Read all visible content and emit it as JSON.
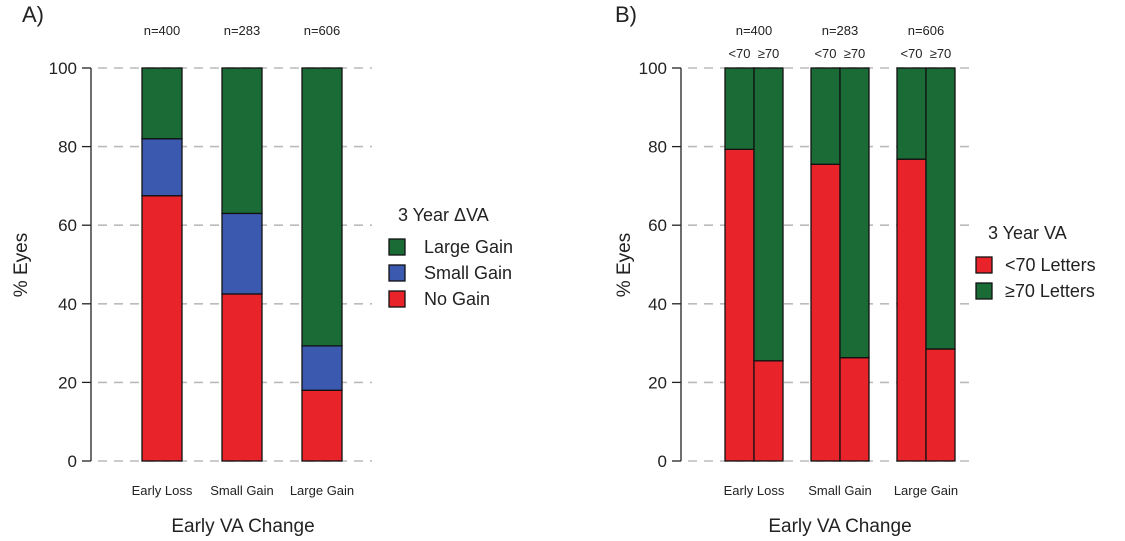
{
  "chart_data": [
    {
      "type": "bar",
      "panel_label": "A)",
      "stacked": true,
      "categories": [
        "Early Loss",
        "Small Gain",
        "Large Gain"
      ],
      "n_labels": [
        "n=400",
        "n=283",
        "n=606"
      ],
      "series": [
        {
          "name": "No Gain",
          "color": "#e8232a",
          "values": [
            67.5,
            42.5,
            18
          ]
        },
        {
          "name": "Small Gain",
          "color": "#3b59ae",
          "values": [
            14.5,
            20.5,
            11.3
          ]
        },
        {
          "name": "Large Gain",
          "color": "#1a6b35",
          "values": [
            18,
            37,
            70.7
          ]
        }
      ],
      "legend_title": "3 Year ΔVA",
      "legend_order": [
        "Large Gain",
        "Small Gain",
        "No Gain"
      ],
      "xlabel": "Early VA Change",
      "ylabel": "% Eyes",
      "ylim": [
        0,
        100
      ],
      "yticks": [
        "0",
        "20",
        "40",
        "60",
        "80",
        "100"
      ],
      "grid": true,
      "legend_position": "right"
    },
    {
      "type": "bar",
      "panel_label": "B)",
      "stacked": true,
      "categories": [
        "Early Loss",
        "Small Gain",
        "Large Gain"
      ],
      "n_labels": [
        "n=400",
        "n=283",
        "n=606"
      ],
      "subgroups": [
        "<70",
        "≥70"
      ],
      "series": [
        {
          "name": "<70 Letters",
          "color": "#e8232a",
          "values": [
            [
              79.3,
              25.5
            ],
            [
              75.5,
              26.3
            ],
            [
              76.8,
              28.5
            ]
          ]
        },
        {
          "name": "≥70 Letters",
          "color": "#1a6b35",
          "values": [
            [
              20.7,
              74.5
            ],
            [
              24.5,
              73.7
            ],
            [
              23.2,
              71.5
            ]
          ]
        }
      ],
      "legend_title": "3 Year VA",
      "legend_order": [
        "<70 Letters",
        "≥70 Letters"
      ],
      "xlabel": "Early VA Change",
      "ylabel": "% Eyes",
      "ylim": [
        0,
        100
      ],
      "yticks": [
        "0",
        "20",
        "40",
        "60",
        "80",
        "100"
      ],
      "grid": true,
      "legend_position": "right"
    }
  ]
}
